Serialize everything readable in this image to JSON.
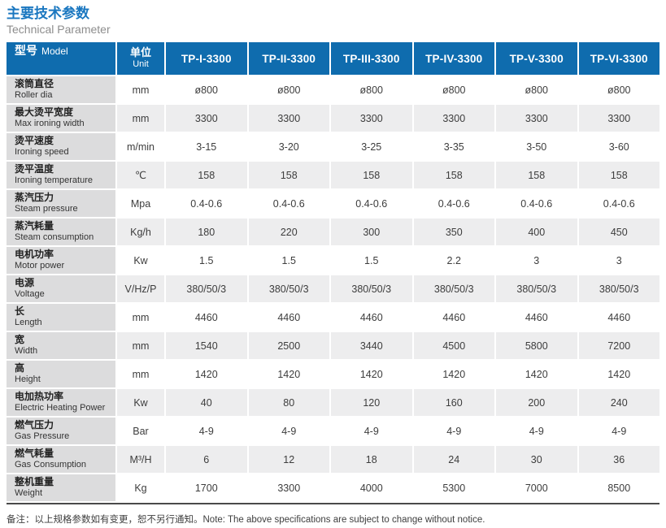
{
  "page": {
    "title_zh": "主要技术参数",
    "subtitle_en": "Technical Parameter",
    "note": "备注：以上规格参数如有变更，恕不另行通知。Note: The above specifications are subject to change without notice."
  },
  "colors": {
    "header_blue": "#0f6cae",
    "title_blue": "#1a77c0",
    "subtitle_gray": "#8d8d8d",
    "label_gray": "#dcdcdd",
    "stripe_gray": "#ededee",
    "value_text": "#3d3d3d",
    "bottom_border": "#4a4a4a"
  },
  "table": {
    "header": {
      "model_zh": "型号",
      "model_en": "Model",
      "unit_zh": "单位",
      "unit_en": "Unit",
      "models": [
        "TP-I-3300",
        "TP-II-3300",
        "TP-III-3300",
        "TP-IV-3300",
        "TP-V-3300",
        "TP-VI-3300"
      ]
    },
    "rows": [
      {
        "zh": "滚筒直径",
        "en": "Roller dia",
        "unit": "mm",
        "values": [
          "ø800",
          "ø800",
          "ø800",
          "ø800",
          "ø800",
          "ø800"
        ]
      },
      {
        "zh": "最大烫平宽度",
        "en": "Max ironing width",
        "unit": "mm",
        "values": [
          "3300",
          "3300",
          "3300",
          "3300",
          "3300",
          "3300"
        ]
      },
      {
        "zh": "烫平速度",
        "en": "Ironing speed",
        "unit": "m/min",
        "values": [
          "3-15",
          "3-20",
          "3-25",
          "3-35",
          "3-50",
          "3-60"
        ]
      },
      {
        "zh": "烫平温度",
        "en": "Ironing temperature",
        "unit": "℃",
        "values": [
          "158",
          "158",
          "158",
          "158",
          "158",
          "158"
        ]
      },
      {
        "zh": "蒸汽压力",
        "en": "Steam pressure",
        "unit": "Mpa",
        "values": [
          "0.4-0.6",
          "0.4-0.6",
          "0.4-0.6",
          "0.4-0.6",
          "0.4-0.6",
          "0.4-0.6"
        ]
      },
      {
        "zh": "蒸汽耗量",
        "en": "Steam consumption",
        "unit": "Kg/h",
        "values": [
          "180",
          "220",
          "300",
          "350",
          "400",
          "450"
        ]
      },
      {
        "zh": "电机功率",
        "en": "Motor power",
        "unit": "Kw",
        "values": [
          "1.5",
          "1.5",
          "1.5",
          "2.2",
          "3",
          "3"
        ]
      },
      {
        "zh": "电源",
        "en": "Voltage",
        "unit": "V/Hz/P",
        "values": [
          "380/50/3",
          "380/50/3",
          "380/50/3",
          "380/50/3",
          "380/50/3",
          "380/50/3"
        ]
      },
      {
        "zh": "长",
        "en": "Length",
        "unit": "mm",
        "values": [
          "4460",
          "4460",
          "4460",
          "4460",
          "4460",
          "4460"
        ]
      },
      {
        "zh": "宽",
        "en": "Width",
        "unit": "mm",
        "values": [
          "1540",
          "2500",
          "3440",
          "4500",
          "5800",
          "7200"
        ]
      },
      {
        "zh": "高",
        "en": "Height",
        "unit": "mm",
        "values": [
          "1420",
          "1420",
          "1420",
          "1420",
          "1420",
          "1420"
        ]
      },
      {
        "zh": "电加热功率",
        "en": "Electric Heating Power",
        "unit": "Kw",
        "values": [
          "40",
          "80",
          "120",
          "160",
          "200",
          "240"
        ]
      },
      {
        "zh": "燃气压力",
        "en": "Gas Pressure",
        "unit": "Bar",
        "values": [
          "4-9",
          "4-9",
          "4-9",
          "4-9",
          "4-9",
          "4-9"
        ]
      },
      {
        "zh": "燃气耗量",
        "en": "Gas Consumption",
        "unit": "M³/H",
        "values": [
          "6",
          "12",
          "18",
          "24",
          "30",
          "36"
        ]
      },
      {
        "zh": "整机重量",
        "en": "Weight",
        "unit": "Kg",
        "values": [
          "1700",
          "3300",
          "4000",
          "5300",
          "7000",
          "8500"
        ]
      }
    ]
  }
}
